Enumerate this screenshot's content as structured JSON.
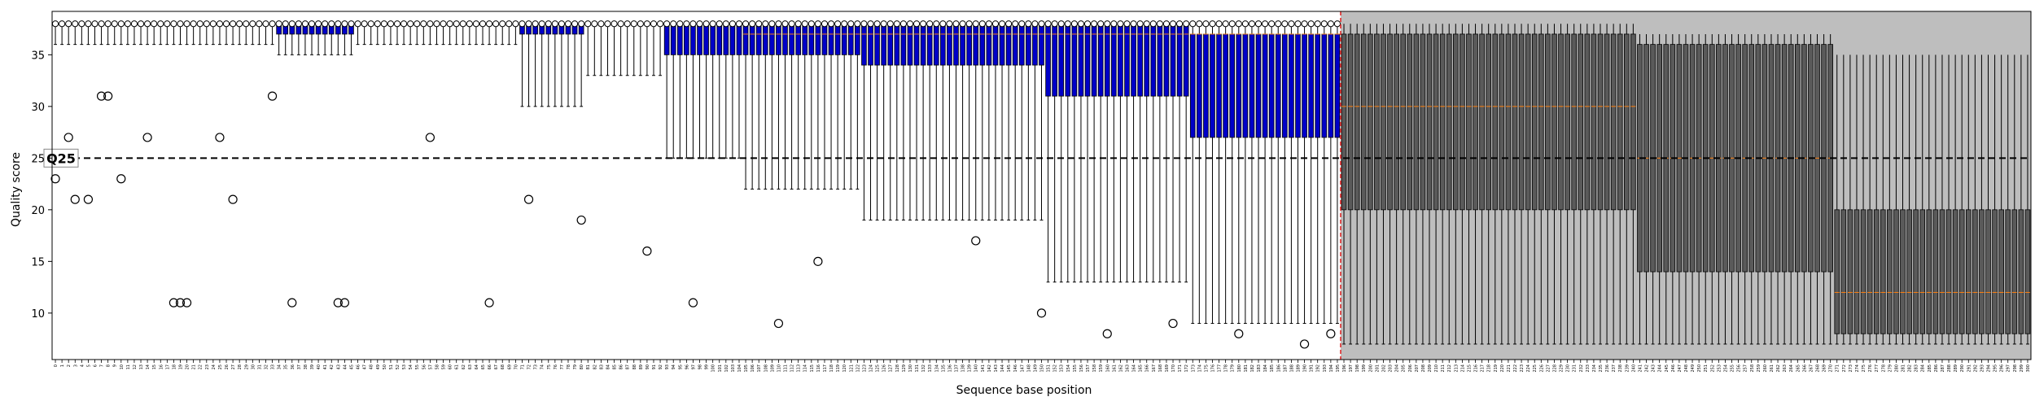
{
  "chart_data": {
    "type": "boxplot",
    "title": "",
    "xlabel": "Sequence base position",
    "ylabel": "Quality score",
    "x_range": [
      0,
      300
    ],
    "ylim": [
      5.5,
      39.2
    ],
    "y_ticks": [
      10,
      15,
      20,
      25,
      30,
      35
    ],
    "x_tick_step": 1,
    "threshold": {
      "value": 25,
      "label": "Q25",
      "style": "dashed"
    },
    "cutoff_position": 195.5,
    "shaded_region": [
      195.5,
      300
    ],
    "grid": false,
    "legend": "none",
    "colors": {
      "box_full": "#e7bc93",
      "box_partial": "#0000c8",
      "box_shaded": "#5a5a5a",
      "shade": "#bebebe",
      "cutoff": "#e02020",
      "median": "#ff7f0e",
      "threshold_line": "#000000"
    },
    "segments": [
      {
        "positions": [
          0,
          33
        ],
        "median": 38,
        "q1": 38,
        "q3": 38,
        "whisker_low": 36,
        "whisker_high": 38
      },
      {
        "positions": [
          34,
          45
        ],
        "median": 38,
        "q1": 37,
        "q3": 38,
        "whisker_low": 35,
        "whisker_high": 38
      },
      {
        "positions": [
          46,
          70
        ],
        "median": 38,
        "q1": 38,
        "q3": 38,
        "whisker_low": 36,
        "whisker_high": 38
      },
      {
        "positions": [
          71,
          80
        ],
        "median": 38,
        "q1": 37,
        "q3": 38,
        "whisker_low": 30,
        "whisker_high": 38
      },
      {
        "positions": [
          81,
          92
        ],
        "median": 38,
        "q1": 38,
        "q3": 38,
        "whisker_low": 33,
        "whisker_high": 38
      },
      {
        "positions": [
          93,
          104
        ],
        "median": 38,
        "q1": 35,
        "q3": 38,
        "whisker_low": 25,
        "whisker_high": 38
      },
      {
        "positions": [
          105,
          122
        ],
        "median": 37,
        "q1": 35,
        "q3": 38,
        "whisker_low": 22,
        "whisker_high": 38
      },
      {
        "positions": [
          123,
          150
        ],
        "median": 37,
        "q1": 34,
        "q3": 38,
        "whisker_low": 19,
        "whisker_high": 38
      },
      {
        "positions": [
          151,
          172
        ],
        "median": 37,
        "q1": 31,
        "q3": 38,
        "whisker_low": 13,
        "whisker_high": 38
      },
      {
        "positions": [
          173,
          195
        ],
        "median": 37,
        "q1": 27,
        "q3": 37,
        "whisker_low": 9,
        "whisker_high": 38
      },
      {
        "positions": [
          196,
          240
        ],
        "median": 30,
        "q1": 20,
        "q3": 37,
        "whisker_low": 7,
        "whisker_high": 38
      },
      {
        "positions": [
          241,
          270
        ],
        "median": 25,
        "q1": 14,
        "q3": 36,
        "whisker_low": 7,
        "whisker_high": 37
      },
      {
        "positions": [
          271,
          300
        ],
        "median": 12,
        "q1": 8,
        "q3": 20,
        "whisker_low": 7,
        "whisker_high": 35
      }
    ],
    "outliers_sample": [
      {
        "x": 0,
        "y": 23
      },
      {
        "x": 1,
        "y": 25
      },
      {
        "x": 2,
        "y": 27
      },
      {
        "x": 3,
        "y": 21
      },
      {
        "x": 5,
        "y": 21
      },
      {
        "x": 7,
        "y": 31
      },
      {
        "x": 8,
        "y": 31
      },
      {
        "x": 10,
        "y": 23
      },
      {
        "x": 14,
        "y": 27
      },
      {
        "x": 18,
        "y": 11
      },
      {
        "x": 19,
        "y": 11
      },
      {
        "x": 20,
        "y": 11
      },
      {
        "x": 25,
        "y": 27
      },
      {
        "x": 27,
        "y": 21
      },
      {
        "x": 33,
        "y": 31
      },
      {
        "x": 36,
        "y": 11
      },
      {
        "x": 43,
        "y": 11
      },
      {
        "x": 44,
        "y": 11
      },
      {
        "x": 57,
        "y": 27
      },
      {
        "x": 66,
        "y": 11
      },
      {
        "x": 72,
        "y": 21
      },
      {
        "x": 80,
        "y": 19
      },
      {
        "x": 90,
        "y": 16
      },
      {
        "x": 97,
        "y": 11
      },
      {
        "x": 110,
        "y": 9
      },
      {
        "x": 116,
        "y": 15
      },
      {
        "x": 140,
        "y": 17
      },
      {
        "x": 150,
        "y": 10
      },
      {
        "x": 160,
        "y": 8
      },
      {
        "x": 170,
        "y": 9
      },
      {
        "x": 180,
        "y": 8
      },
      {
        "x": 190,
        "y": 7
      },
      {
        "x": 194,
        "y": 8
      }
    ]
  }
}
